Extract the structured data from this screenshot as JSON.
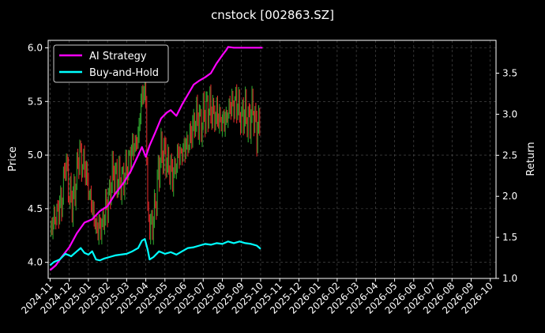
{
  "chart_data": {
    "type": "line",
    "title": "cnstock [002863.SZ]",
    "ylabel_left": "Price",
    "ylabel_right": "Return",
    "left_ticks": [
      "4.0",
      "4.5",
      "5.0",
      "5.5",
      "6.0"
    ],
    "left_ylim": [
      3.85,
      6.07
    ],
    "right_ticks": [
      "1.0",
      "1.5",
      "2.0",
      "2.5",
      "3.0",
      "3.5"
    ],
    "right_ylim": [
      1.0,
      3.9
    ],
    "x_tick_labels": [
      "2024-11",
      "2024-12",
      "2025-01",
      "2025-02",
      "2025-03",
      "2025-04",
      "2025-05",
      "2025-06",
      "2025-07",
      "2025-08",
      "2025-09",
      "2025-10",
      "2025-11",
      "2025-12",
      "2026-01",
      "2026-02",
      "2026-03",
      "2026-04",
      "2026-05",
      "2026-06",
      "2026-07",
      "2026-08",
      "2026-09",
      "2026-10"
    ],
    "x_range_months": [
      -0.1,
      23.3
    ],
    "grid": true,
    "legend_position": "top-left",
    "colors": {
      "up": "#2ca02c",
      "down": "#d62728",
      "ai_strategy": "#ff00ff",
      "buy_and_hold": "#00ffff"
    },
    "price_path": [
      [
        0.0,
        4.28
      ],
      [
        0.3,
        4.45
      ],
      [
        0.6,
        4.55
      ],
      [
        0.8,
        4.95
      ],
      [
        1.0,
        4.65
      ],
      [
        1.2,
        4.55
      ],
      [
        1.5,
        5.0
      ],
      [
        1.8,
        4.9
      ],
      [
        2.0,
        4.7
      ],
      [
        2.3,
        4.4
      ],
      [
        2.5,
        4.3
      ],
      [
        2.7,
        4.35
      ],
      [
        3.0,
        4.55
      ],
      [
        3.3,
        4.85
      ],
      [
        3.6,
        4.75
      ],
      [
        3.9,
        4.8
      ],
      [
        4.1,
        4.95
      ],
      [
        4.4,
        5.1
      ],
      [
        4.6,
        5.15
      ],
      [
        4.8,
        5.6
      ],
      [
        5.0,
        5.55
      ],
      [
        5.1,
        4.45
      ],
      [
        5.3,
        4.3
      ],
      [
        5.5,
        4.55
      ],
      [
        5.8,
        5.05
      ],
      [
        6.1,
        4.95
      ],
      [
        6.4,
        4.8
      ],
      [
        6.7,
        5.0
      ],
      [
        7.0,
        5.05
      ],
      [
        7.3,
        5.15
      ],
      [
        7.6,
        5.35
      ],
      [
        7.9,
        5.3
      ],
      [
        8.2,
        5.45
      ],
      [
        8.5,
        5.4
      ],
      [
        8.8,
        5.35
      ],
      [
        9.1,
        5.3
      ],
      [
        9.4,
        5.45
      ],
      [
        9.7,
        5.5
      ],
      [
        10.0,
        5.35
      ],
      [
        10.2,
        5.4
      ],
      [
        10.4,
        5.3
      ],
      [
        10.6,
        5.45
      ],
      [
        10.8,
        5.2
      ],
      [
        11.0,
        5.35
      ]
    ],
    "series": [
      {
        "name": "AI Strategy",
        "points": [
          [
            0.0,
            1.1
          ],
          [
            0.3,
            1.16
          ],
          [
            0.6,
            1.26
          ],
          [
            1.0,
            1.38
          ],
          [
            1.4,
            1.55
          ],
          [
            1.8,
            1.68
          ],
          [
            2.2,
            1.72
          ],
          [
            2.6,
            1.82
          ],
          [
            3.0,
            1.88
          ],
          [
            3.4,
            2.03
          ],
          [
            3.8,
            2.15
          ],
          [
            4.2,
            2.3
          ],
          [
            4.5,
            2.45
          ],
          [
            4.8,
            2.6
          ],
          [
            5.0,
            2.48
          ],
          [
            5.2,
            2.62
          ],
          [
            5.5,
            2.78
          ],
          [
            5.8,
            2.95
          ],
          [
            6.1,
            3.02
          ],
          [
            6.3,
            3.05
          ],
          [
            6.6,
            2.98
          ],
          [
            6.9,
            3.12
          ],
          [
            7.2,
            3.24
          ],
          [
            7.5,
            3.36
          ],
          [
            7.8,
            3.41
          ],
          [
            8.1,
            3.45
          ],
          [
            8.4,
            3.5
          ],
          [
            8.7,
            3.62
          ],
          [
            9.0,
            3.72
          ],
          [
            9.2,
            3.78
          ],
          [
            9.3,
            3.82
          ],
          [
            9.6,
            3.81
          ],
          [
            10.2,
            3.81
          ],
          [
            10.8,
            3.81
          ],
          [
            11.1,
            3.81
          ]
        ]
      },
      {
        "name": "Buy-and-Hold",
        "points": [
          [
            0.0,
            1.16
          ],
          [
            0.2,
            1.2
          ],
          [
            0.5,
            1.23
          ],
          [
            0.8,
            1.3
          ],
          [
            1.1,
            1.27
          ],
          [
            1.4,
            1.33
          ],
          [
            1.6,
            1.37
          ],
          [
            1.8,
            1.31
          ],
          [
            2.0,
            1.29
          ],
          [
            2.2,
            1.33
          ],
          [
            2.4,
            1.23
          ],
          [
            2.6,
            1.22
          ],
          [
            2.8,
            1.24
          ],
          [
            3.1,
            1.26
          ],
          [
            3.4,
            1.28
          ],
          [
            3.7,
            1.29
          ],
          [
            4.0,
            1.3
          ],
          [
            4.3,
            1.33
          ],
          [
            4.6,
            1.37
          ],
          [
            4.8,
            1.46
          ],
          [
            4.95,
            1.48
          ],
          [
            5.1,
            1.35
          ],
          [
            5.2,
            1.23
          ],
          [
            5.4,
            1.26
          ],
          [
            5.7,
            1.33
          ],
          [
            6.0,
            1.3
          ],
          [
            6.3,
            1.32
          ],
          [
            6.6,
            1.29
          ],
          [
            6.9,
            1.33
          ],
          [
            7.2,
            1.37
          ],
          [
            7.5,
            1.38
          ],
          [
            7.8,
            1.4
          ],
          [
            8.1,
            1.42
          ],
          [
            8.4,
            1.41
          ],
          [
            8.7,
            1.43
          ],
          [
            9.0,
            1.42
          ],
          [
            9.3,
            1.45
          ],
          [
            9.6,
            1.43
          ],
          [
            9.9,
            1.45
          ],
          [
            10.2,
            1.43
          ],
          [
            10.5,
            1.42
          ],
          [
            10.8,
            1.4
          ],
          [
            11.0,
            1.36
          ]
        ]
      }
    ]
  }
}
